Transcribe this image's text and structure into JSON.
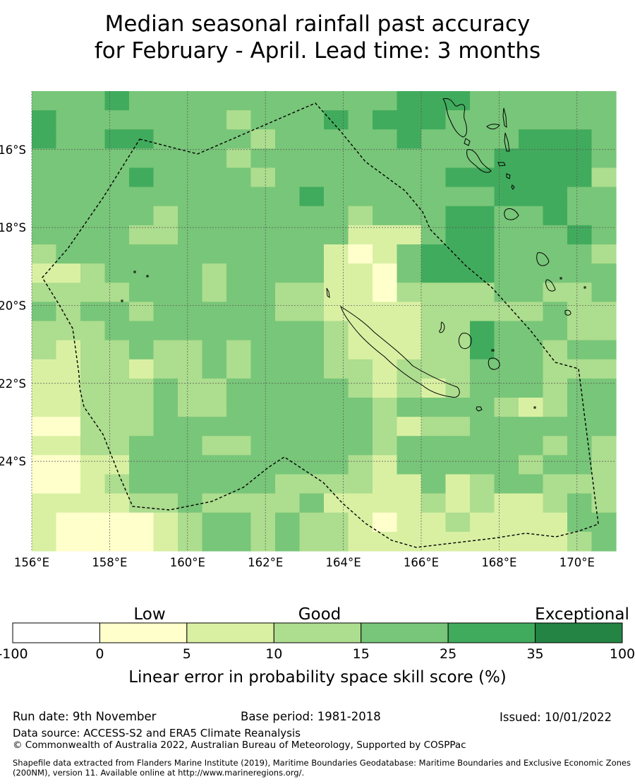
{
  "title": {
    "line1": "Median seasonal rainfall past accuracy",
    "line2": "for February - April. Lead time: 3 months"
  },
  "map": {
    "lon_labels": [
      "156°E",
      "158°E",
      "160°E",
      "162°E",
      "164°E",
      "166°E",
      "168°E",
      "170°E"
    ],
    "lon_values": [
      156,
      158,
      160,
      162,
      164,
      166,
      168,
      170
    ],
    "lat_labels": [
      "16°S",
      "18°S",
      "20°S",
      "22°S",
      "24°S"
    ],
    "lat_values": [
      -16,
      -18,
      -20,
      -22,
      -24
    ],
    "extent": {
      "lon_min": 156,
      "lon_max": 171,
      "lat_max": -14.5,
      "lat_min": -26.3
    },
    "cell_size_deg": 0.833,
    "grid": [
      "444544444444444555444444",
      "544444443444545554444444",
      "544554444344444544445554",
      "444444443444444444455554",
      "444454444344444445555553",
      "444444444445444444455544",
      "444443444444434445544544",
      "444433444444422245544454",
      "344444444444212455544443",
      "223444434444221455544444",
      "333344434433221333344334",
      "434434444433222233333433",
      "333444444444322233544433",
      "323343343444322233544344",
      "223323343444332333444333",
      "223334334444432323444344",
      "223334334444443444432344",
      "113334444444443233444444",
      "223344433444443444444343",
      "112244444444432444443443",
      "112344444433332242344333",
      "222233433334222232322343",
      "211112344343321223222244",
      "211112344343322222222234"
    ]
  },
  "legend": {
    "category_low": "Low",
    "category_good": "Good",
    "category_exceptional": "Exceptional",
    "ticks": [
      "-100",
      "0",
      "5",
      "10",
      "15",
      "25",
      "35",
      "100"
    ],
    "colors": [
      "#ffffff",
      "#ffffcc",
      "#d9f0a3",
      "#addd8e",
      "#78c679",
      "#41ab5d",
      "#238443"
    ],
    "label": "Linear error in probability space skill score (%)"
  },
  "footer": {
    "run_date": "Run date: 9th November",
    "base_period": "Base period: 1981-2018",
    "issued": "Issued: 10/01/2022",
    "data_source": "Data source: ACCESS-S2 and ERA5 Climate Reanalysis",
    "copyright": "© Commonwealth of Australia 2022, Australian Bureau of Meteorology, Supported by COSPPac",
    "shapefile": "Shapefile data extracted from Flanders Marine Institute (2019), Maritime Boundaries Geodatabase: Maritime Boundaries and Exclusive Economic Zones (200NM), version 11. Available online at http://www.marineregions.org/."
  }
}
